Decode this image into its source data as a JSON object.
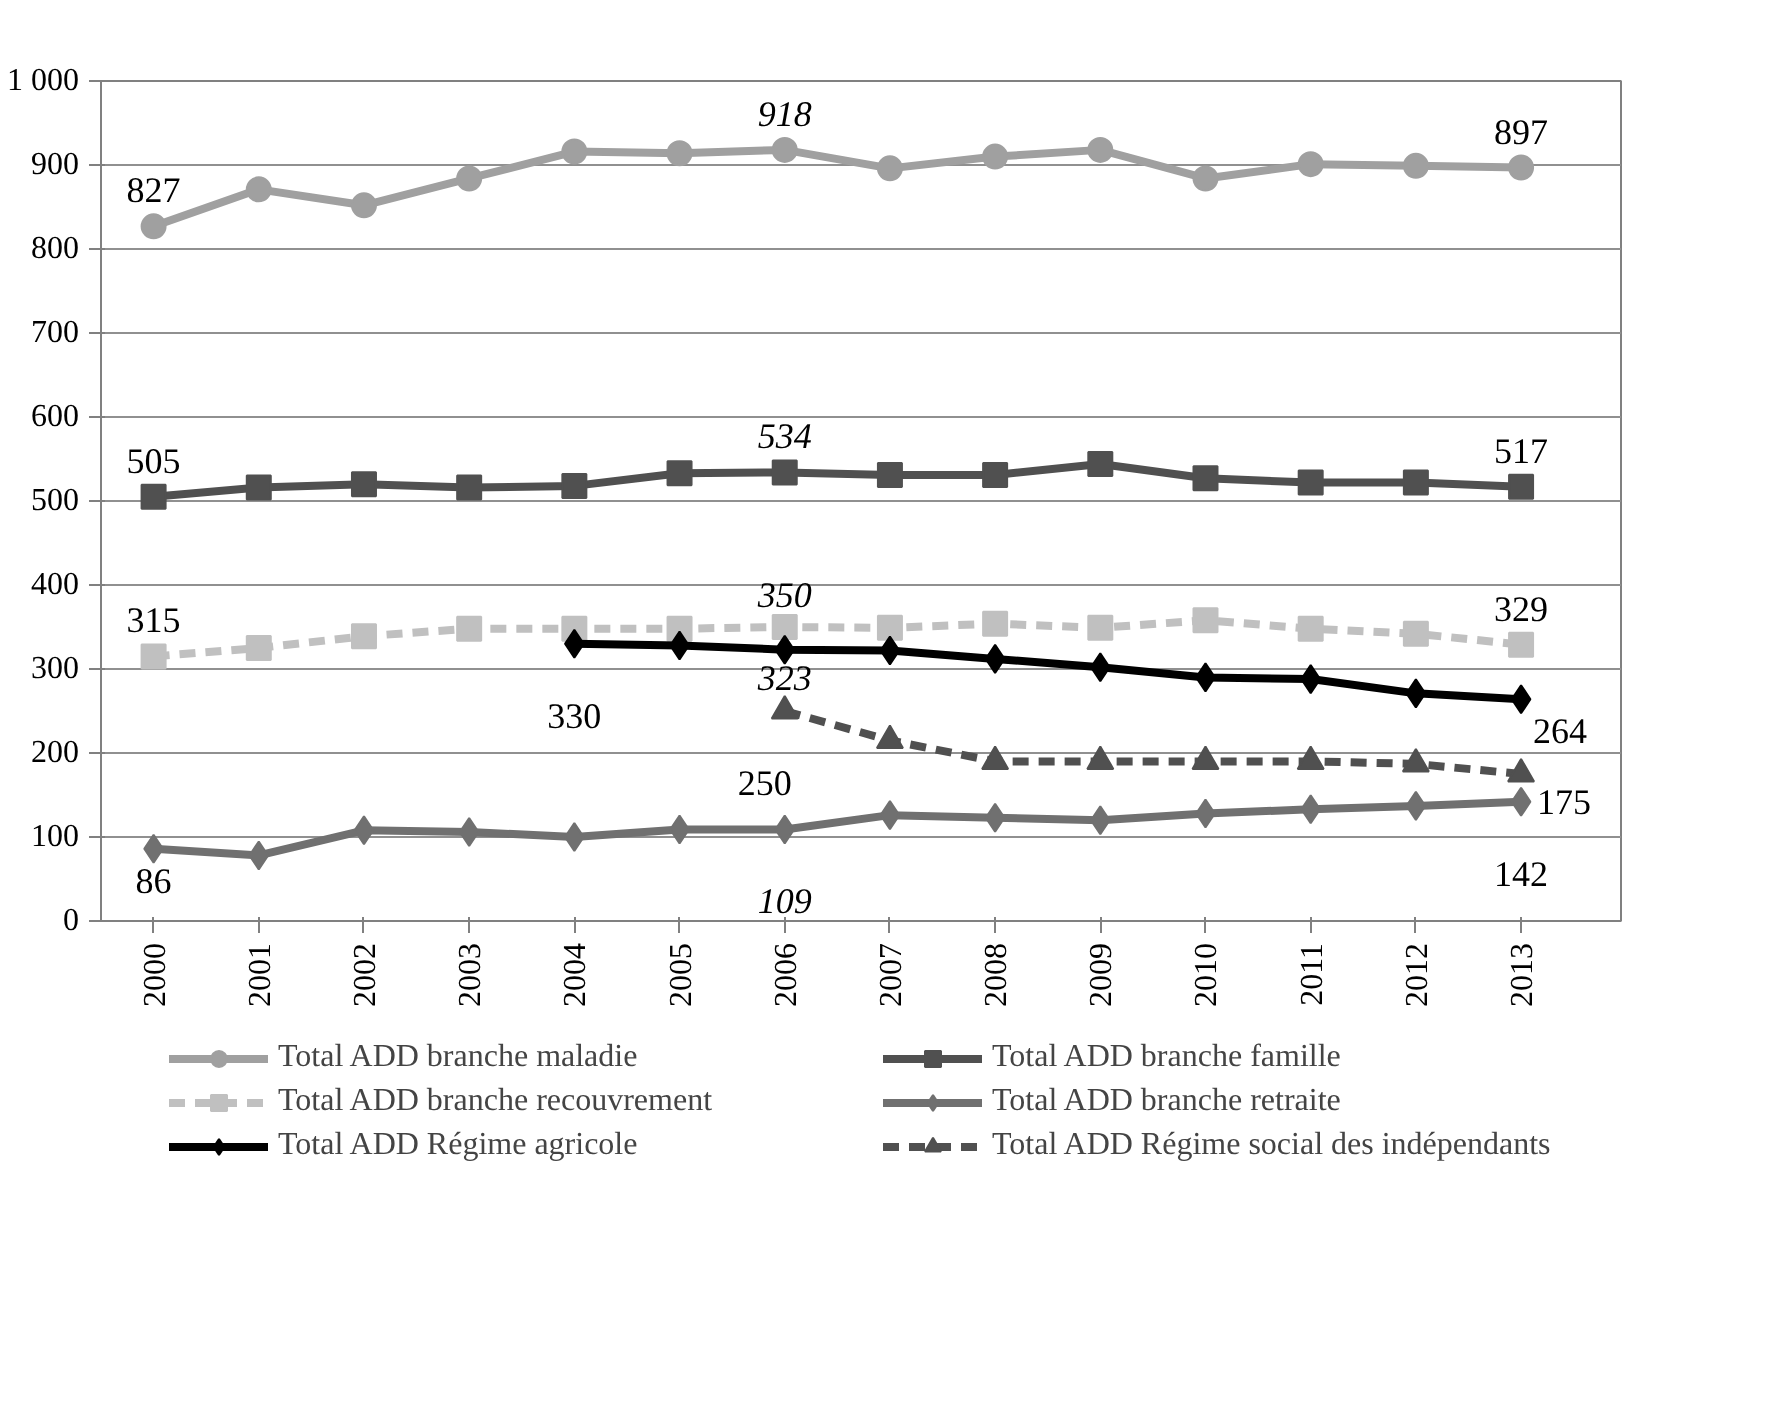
{
  "chart_data": {
    "type": "line",
    "categories": [
      "2000",
      "2001",
      "2002",
      "2003",
      "2004",
      "2005",
      "2006",
      "2007",
      "2008",
      "2009",
      "2010",
      "2011",
      "2012",
      "2013"
    ],
    "ylim": [
      0,
      1000
    ],
    "yticks": [
      0,
      100,
      200,
      300,
      400,
      500,
      600,
      700,
      800,
      900,
      {
        "value": 1000,
        "label": "1 000"
      }
    ],
    "grid": "y",
    "legend": "bottom",
    "series": [
      {
        "name": "Total ADD branche maladie",
        "color": "#a0a0a0",
        "marker": "circle",
        "line_style": "solid",
        "values": [
          827,
          871,
          852,
          884,
          916,
          914,
          918,
          896,
          910,
          918,
          884,
          901,
          899,
          897
        ],
        "value_labels": [
          "827",
          null,
          null,
          null,
          null,
          null,
          "918",
          null,
          null,
          null,
          null,
          null,
          null,
          "897"
        ]
      },
      {
        "name": "Total ADD branche famille",
        "color": "#505050",
        "marker": "square",
        "line_style": "solid",
        "values": [
          505,
          516,
          520,
          516,
          518,
          533,
          534,
          531,
          531,
          544,
          527,
          522,
          522,
          517
        ],
        "value_labels": [
          "505",
          null,
          null,
          null,
          null,
          null,
          "534",
          null,
          null,
          null,
          null,
          null,
          null,
          "517"
        ]
      },
      {
        "name": "Total ADD branche recouvrement",
        "color": "#c0c0c0",
        "marker": "square",
        "line_style": "dashed",
        "values": [
          315,
          325,
          339,
          348,
          348,
          348,
          350,
          349,
          354,
          349,
          358,
          348,
          342,
          329
        ],
        "value_labels": [
          "315",
          null,
          null,
          null,
          null,
          null,
          "350",
          null,
          null,
          null,
          null,
          null,
          null,
          "329"
        ]
      },
      {
        "name": "Total ADD branche retraite",
        "color": "#707070",
        "marker": "diamond",
        "line_style": "solid",
        "values": [
          86,
          78,
          108,
          106,
          100,
          109,
          109,
          126,
          123,
          120,
          128,
          133,
          137,
          142
        ],
        "value_labels": [
          "86",
          null,
          null,
          null,
          null,
          null,
          "109",
          null,
          null,
          null,
          null,
          null,
          null,
          "142"
        ]
      },
      {
        "name": "Total ADD Régime agricole",
        "color": "#000000",
        "marker": "diamond",
        "line_style": "solid",
        "values": [
          null,
          null,
          null,
          null,
          330,
          328,
          323,
          322,
          312,
          302,
          290,
          288,
          271,
          264
        ],
        "value_labels": [
          null,
          null,
          null,
          null,
          "330",
          null,
          "323",
          null,
          null,
          null,
          null,
          null,
          null,
          "264"
        ]
      },
      {
        "name": "Total ADD Régime social des indépendants",
        "color": "#505050",
        "marker": "triangle",
        "line_style": "dashed",
        "values": [
          null,
          null,
          null,
          null,
          null,
          null,
          250,
          215,
          190,
          190,
          190,
          190,
          187,
          175
        ],
        "value_labels": [
          null,
          null,
          null,
          null,
          null,
          null,
          "250",
          null,
          null,
          null,
          null,
          null,
          null,
          "175"
        ]
      }
    ]
  }
}
